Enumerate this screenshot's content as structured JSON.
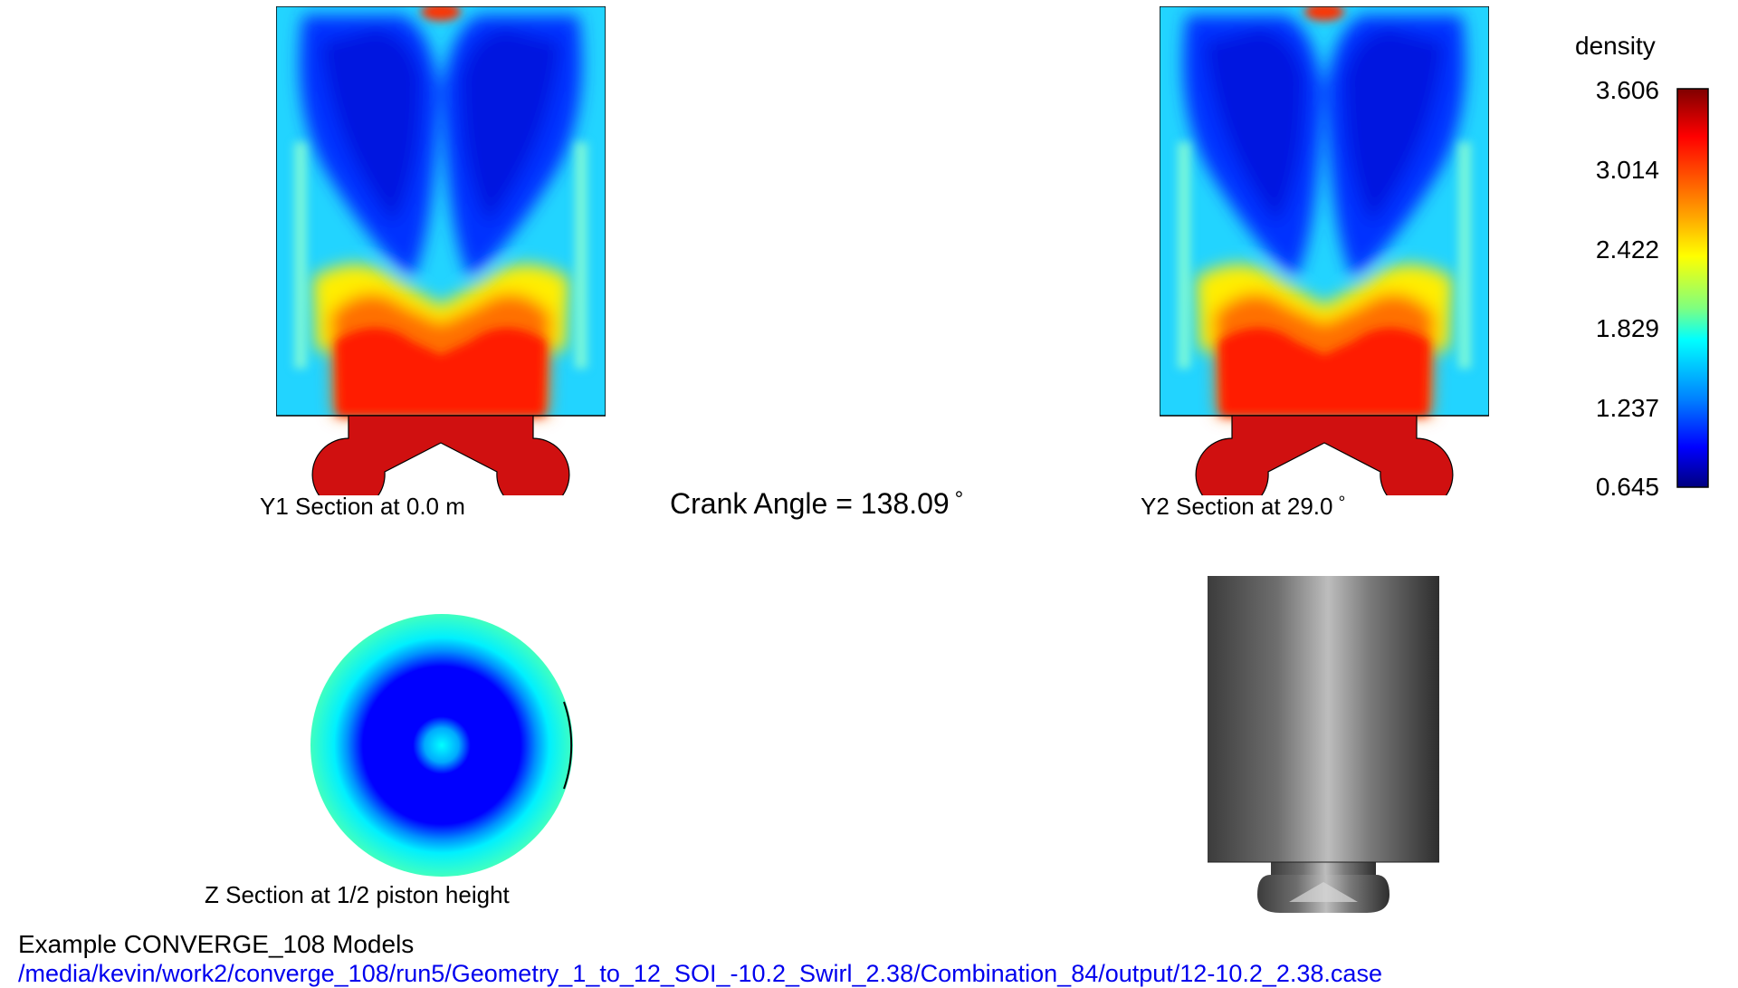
{
  "sections": {
    "y1_label": "Y1 Section at 0.0 m",
    "y2_label": "Y2 Section at 29.0",
    "y2_unit": "°",
    "z_label": "Z Section at 1/2 piston height"
  },
  "crank": {
    "text": "Crank Angle = 138.09",
    "unit": "°"
  },
  "colorbar": {
    "title": "density",
    "ticks": [
      "3.606",
      "3.014",
      "2.422",
      "1.829",
      "1.237",
      "0.645"
    ],
    "min": 0.645,
    "max": 3.606,
    "colors": [
      "#800000",
      "#ff0000",
      "#ffff00",
      "#00ffff",
      "#0000ff",
      "#000080"
    ]
  },
  "footer": {
    "title": "Example CONVERGE_108 Models",
    "path": "/media/kevin/work2/converge_108/run5/Geometry_1_to_12_SOI_-10.2_Swirl_2.38/Combination_84/output/12-10.2_2.38.case",
    "path_color": "#0000ee"
  }
}
